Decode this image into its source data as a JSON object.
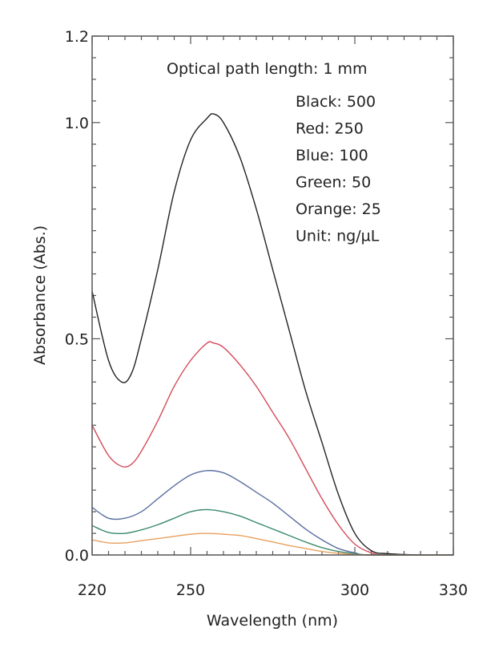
{
  "chart_data": {
    "type": "line",
    "title": "",
    "xlabel": "Wavelength (nm)",
    "ylabel": "Absorbance (Abs.)",
    "xlim": [
      220,
      330
    ],
    "ylim": [
      0,
      1.2
    ],
    "x_ticks": [
      220,
      250,
      300,
      330
    ],
    "y_ticks": [
      {
        "value": 0.0,
        "label": "0.0"
      },
      {
        "value": 0.5,
        "label": "0.5"
      },
      {
        "value": 1.0,
        "label": "1.0"
      },
      {
        "value": 1.2,
        "label": "1.2"
      }
    ],
    "grid": false,
    "annotations": {
      "header": "Optical path length: 1 mm",
      "legend_lines": [
        "Black: 500",
        "Red:    250",
        "Blue:   100",
        "Green:  50",
        "Orange: 25",
        "Unit: ng/µL"
      ]
    },
    "series": [
      {
        "color": "#222222",
        "x": [
          220,
          225,
          229,
          232,
          235,
          240,
          245,
          250,
          255,
          257,
          260,
          265,
          270,
          275,
          280,
          285,
          290,
          295,
          300,
          305,
          310,
          320,
          330
        ],
        "y": [
          0.61,
          0.45,
          0.4,
          0.42,
          0.5,
          0.66,
          0.84,
          0.96,
          1.01,
          1.02,
          1.0,
          0.92,
          0.8,
          0.66,
          0.52,
          0.38,
          0.26,
          0.14,
          0.05,
          0.01,
          0.003,
          0,
          0
        ]
      },
      {
        "color": "#d44a5a",
        "x": [
          220,
          225,
          229,
          232,
          235,
          240,
          245,
          250,
          255,
          257,
          260,
          265,
          270,
          275,
          280,
          285,
          290,
          295,
          300,
          305,
          310,
          330
        ],
        "y": [
          0.3,
          0.23,
          0.205,
          0.21,
          0.24,
          0.31,
          0.39,
          0.45,
          0.49,
          0.49,
          0.48,
          0.44,
          0.39,
          0.33,
          0.27,
          0.2,
          0.13,
          0.07,
          0.025,
          0.005,
          0,
          0
        ]
      },
      {
        "color": "#5a6ea0",
        "x": [
          220,
          225,
          230,
          235,
          240,
          245,
          250,
          255,
          260,
          265,
          270,
          275,
          280,
          285,
          290,
          295,
          300,
          305,
          330
        ],
        "y": [
          0.11,
          0.085,
          0.085,
          0.1,
          0.13,
          0.16,
          0.185,
          0.195,
          0.19,
          0.17,
          0.145,
          0.12,
          0.09,
          0.06,
          0.035,
          0.015,
          0.005,
          0,
          0
        ]
      },
      {
        "color": "#3a8a6a",
        "x": [
          220,
          225,
          230,
          235,
          240,
          245,
          250,
          255,
          260,
          265,
          270,
          275,
          280,
          285,
          290,
          295,
          300,
          305,
          330
        ],
        "y": [
          0.068,
          0.052,
          0.05,
          0.058,
          0.07,
          0.085,
          0.1,
          0.105,
          0.1,
          0.09,
          0.075,
          0.06,
          0.045,
          0.03,
          0.017,
          0.008,
          0.003,
          0,
          0
        ]
      },
      {
        "color": "#e8a060",
        "x": [
          220,
          225,
          230,
          235,
          240,
          245,
          250,
          255,
          260,
          265,
          270,
          275,
          280,
          285,
          290,
          295,
          300,
          305,
          330
        ],
        "y": [
          0.035,
          0.028,
          0.028,
          0.033,
          0.038,
          0.043,
          0.048,
          0.05,
          0.048,
          0.045,
          0.038,
          0.03,
          0.022,
          0.015,
          0.008,
          0.004,
          0.001,
          0,
          0
        ]
      }
    ]
  }
}
